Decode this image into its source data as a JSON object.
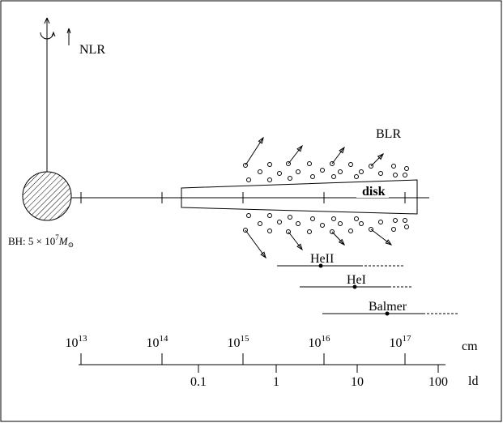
{
  "labels": {
    "nlr": "NLR",
    "blr": "BLR",
    "disk": "disk"
  },
  "black_hole": {
    "prefix": "BH: 5 × 10",
    "exp": "7",
    "symbol": "M",
    "sub": "⊙"
  },
  "lines": [
    {
      "name": "HeII"
    },
    {
      "name": "HeI"
    },
    {
      "name": "Balmer"
    }
  ],
  "cm_axis": {
    "unit": "cm",
    "ticks": [
      {
        "base": "10",
        "exp": "13"
      },
      {
        "base": "10",
        "exp": "14"
      },
      {
        "base": "10",
        "exp": "15"
      },
      {
        "base": "10",
        "exp": "16"
      },
      {
        "base": "10",
        "exp": "17"
      }
    ]
  },
  "ld_axis": {
    "unit": "ld",
    "ticks": [
      "0.1",
      "1",
      "10",
      "100"
    ]
  }
}
